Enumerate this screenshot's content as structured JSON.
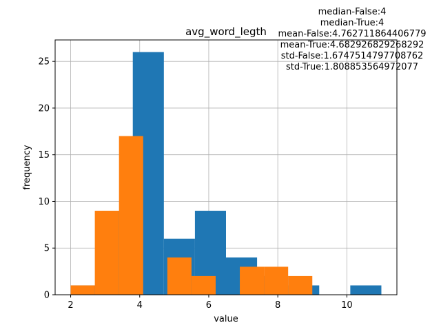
{
  "chart_data": {
    "type": "bar",
    "title": "avg_word_legth",
    "xlabel": "value",
    "ylabel": "frequency",
    "xlim": [
      1.55,
      11.45
    ],
    "ylim": [
      0,
      27.3
    ],
    "xticks": [
      2,
      4,
      6,
      8,
      10
    ],
    "yticks": [
      0,
      5,
      10,
      15,
      20,
      25
    ],
    "grid": true,
    "annotation_lines": [
      "median-False:4",
      "median-True:4",
      "mean-False:4.762711864406779",
      "mean-True:4.682926829268292",
      "std-False:1.6747514797708762",
      "std-True:1.808853564972077"
    ],
    "series": [
      {
        "color": "#1f77b4",
        "bins": [
          {
            "x0": 2.0,
            "x1": 2.9,
            "value": 1
          },
          {
            "x0": 2.9,
            "x1": 3.8,
            "value": 9
          },
          {
            "x0": 3.8,
            "x1": 4.7,
            "value": 26
          },
          {
            "x0": 4.7,
            "x1": 5.6,
            "value": 6
          },
          {
            "x0": 5.6,
            "x1": 6.5,
            "value": 9
          },
          {
            "x0": 6.5,
            "x1": 7.4,
            "value": 4
          },
          {
            "x0": 7.4,
            "x1": 8.3,
            "value": 2
          },
          {
            "x0": 8.3,
            "x1": 9.2,
            "value": 1
          },
          {
            "x0": 9.2,
            "x1": 10.1,
            "value": 0
          },
          {
            "x0": 10.1,
            "x1": 11.0,
            "value": 1
          }
        ]
      },
      {
        "color": "#ff7f0e",
        "bins": [
          {
            "x0": 2.0,
            "x1": 2.7,
            "value": 1
          },
          {
            "x0": 2.7,
            "x1": 3.4,
            "value": 9
          },
          {
            "x0": 3.4,
            "x1": 4.1,
            "value": 17
          },
          {
            "x0": 4.1,
            "x1": 4.8,
            "value": 0
          },
          {
            "x0": 4.8,
            "x1": 5.5,
            "value": 4
          },
          {
            "x0": 5.5,
            "x1": 6.2,
            "value": 2
          },
          {
            "x0": 6.2,
            "x1": 6.9,
            "value": 0
          },
          {
            "x0": 6.9,
            "x1": 7.6,
            "value": 3
          },
          {
            "x0": 7.6,
            "x1": 8.3,
            "value": 3
          },
          {
            "x0": 8.3,
            "x1": 9.0,
            "value": 2
          }
        ]
      }
    ]
  }
}
